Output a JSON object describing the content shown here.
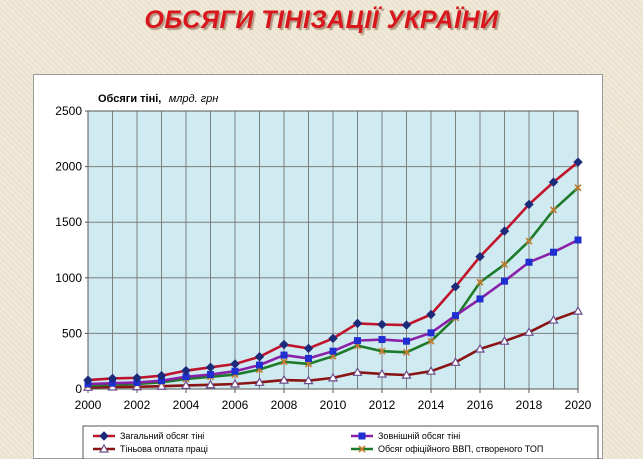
{
  "title": "ОБСЯГИ ТІНІЗАЦІЇ   УКРАЇНИ",
  "colors": {
    "title": "#d8161b",
    "plot_bg": "#cfeaf0",
    "grid": "#7f7f7f"
  },
  "chart_data": {
    "type": "line",
    "ylabel_bold": "Обсяги тіні,",
    "ylabel_unit": "млрд. грн",
    "xlim": [
      2000,
      2020
    ],
    "ylim": [
      0,
      2500
    ],
    "xticks": [
      2000,
      2002,
      2004,
      2006,
      2008,
      2010,
      2012,
      2014,
      2016,
      2018,
      2020
    ],
    "yticks": [
      0,
      500,
      1000,
      1500,
      2000,
      2500
    ],
    "grid": true,
    "legend_position": "bottom",
    "x": [
      2000,
      2001,
      2002,
      2003,
      2004,
      2005,
      2006,
      2007,
      2008,
      2009,
      2010,
      2011,
      2012,
      2013,
      2014,
      2015,
      2016,
      2017,
      2018,
      2019,
      2020
    ],
    "series": [
      {
        "name": "Загальний обсяг тіні",
        "color": "#c0142c",
        "marker_color": "#1c2a7a",
        "marker": "diamond",
        "values": [
          80,
          95,
          100,
          120,
          165,
          195,
          225,
          290,
          400,
          365,
          455,
          590,
          580,
          575,
          670,
          920,
          1190,
          1420,
          1660,
          1860,
          2040
        ]
      },
      {
        "name": "Зовнішній обсяг тіні",
        "color": "#8a1fa8",
        "marker_color": "#1f2fd0",
        "marker": "square",
        "values": [
          45,
          52,
          58,
          75,
          110,
          130,
          160,
          215,
          305,
          275,
          340,
          435,
          445,
          430,
          505,
          660,
          810,
          970,
          1140,
          1230,
          1340
        ]
      },
      {
        "name": "Тіньова оплата праці",
        "color": "#8a1414",
        "marker_color": "#6a4a8a",
        "marker": "triangle",
        "values": [
          15,
          18,
          20,
          25,
          32,
          38,
          45,
          60,
          80,
          75,
          100,
          150,
          135,
          125,
          160,
          240,
          360,
          430,
          510,
          620,
          700
        ]
      },
      {
        "name": "Обсяг офіційного ВВП, створеного ТОП",
        "color": "#1d7a2a",
        "marker_color": "#c87a2a",
        "marker": "x",
        "values": [
          30,
          40,
          45,
          60,
          90,
          110,
          130,
          175,
          245,
          225,
          295,
          390,
          340,
          330,
          430,
          640,
          960,
          1120,
          1330,
          1610,
          1810
        ]
      }
    ]
  }
}
